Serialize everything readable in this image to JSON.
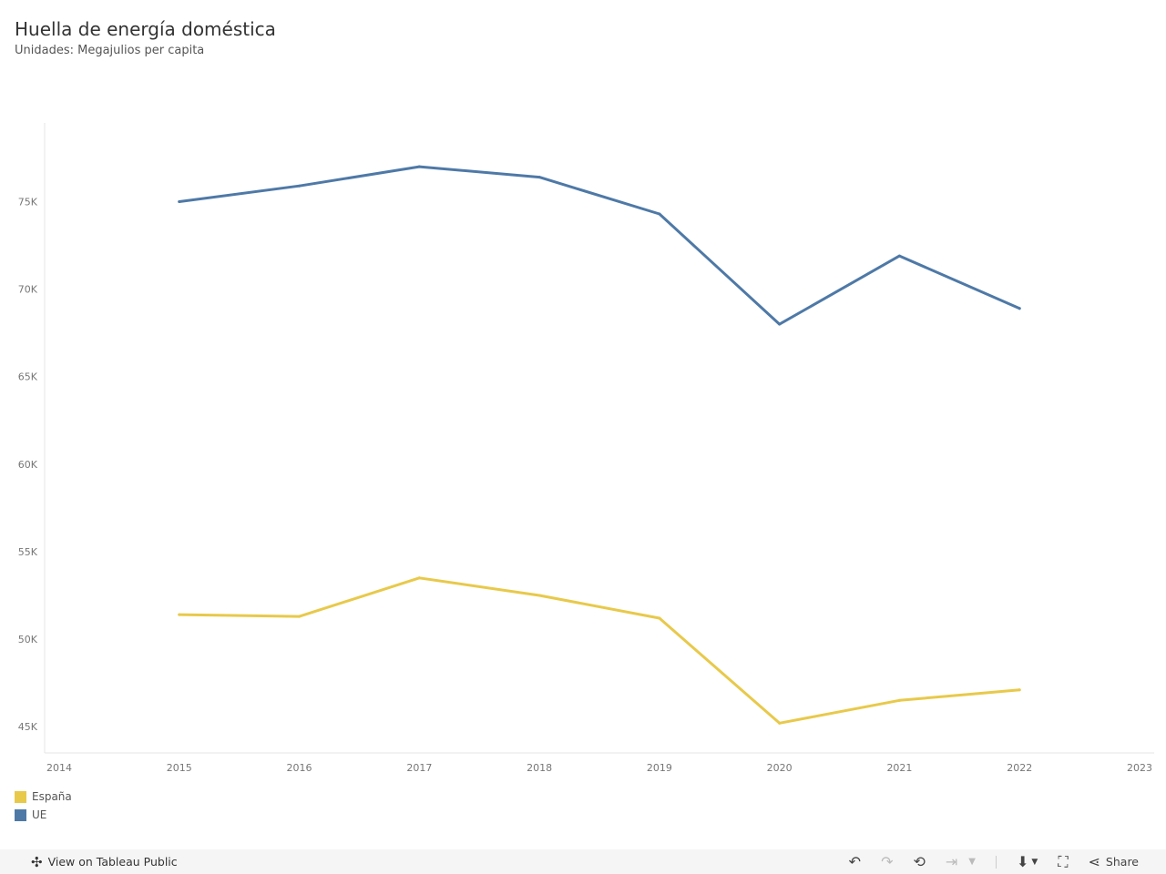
{
  "header": {
    "title": "Huella de energía doméstica",
    "subtitle": "Unidades: Megajulios per capita"
  },
  "colors": {
    "espana": "#E8C94A",
    "ue": "#4E79A7",
    "axis": "#e6e6e6",
    "tick": "#777777"
  },
  "chart_data": {
    "type": "line",
    "title": "Huella de energía doméstica",
    "subtitle": "Unidades: Megajulios per capita",
    "xlabel": "",
    "ylabel": "",
    "xlim": [
      2014,
      2023
    ],
    "ylim": [
      43500,
      79500
    ],
    "x_ticks": [
      2014,
      2015,
      2016,
      2017,
      2018,
      2019,
      2020,
      2021,
      2022,
      2023
    ],
    "y_ticks": [
      45000,
      50000,
      55000,
      60000,
      65000,
      70000,
      75000
    ],
    "y_tick_labels": [
      "45K",
      "50K",
      "55K",
      "60K",
      "65K",
      "70K",
      "75K"
    ],
    "grid": false,
    "legend": "bottom-left",
    "x": [
      2015,
      2016,
      2017,
      2018,
      2019,
      2020,
      2021,
      2022
    ],
    "series": [
      {
        "name": "España",
        "color": "#E8C94A",
        "values": [
          51400,
          51300,
          53500,
          52500,
          51200,
          45200,
          46500,
          47100
        ]
      },
      {
        "name": "UE",
        "color": "#4E79A7",
        "values": [
          75000,
          75900,
          77000,
          76400,
          74300,
          68000,
          71900,
          68900
        ]
      }
    ]
  },
  "footer": {
    "view_label": "View on Tableau Public",
    "share_label": "Share"
  }
}
